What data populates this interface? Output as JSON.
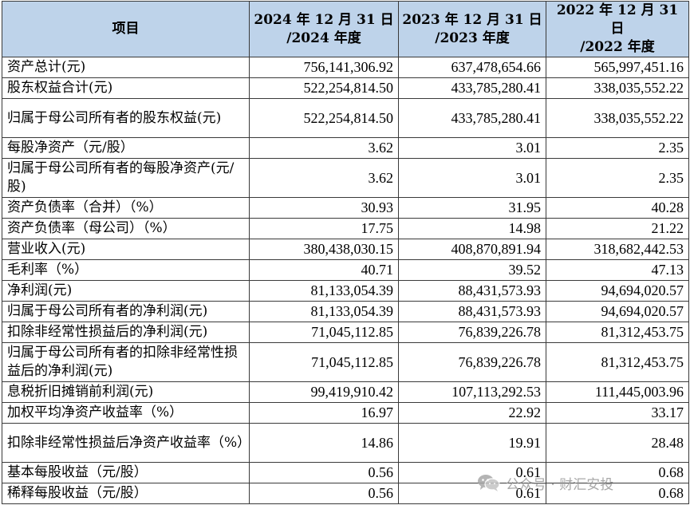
{
  "table": {
    "headers": [
      "项目",
      "2024 年 12 月 31 日\n/2024 年度",
      "2023 年 12 月 31 日\n/2023 年度",
      "2022 年 12 月 31 日\n/2022 年度"
    ],
    "rows": [
      {
        "label": "资产总计(元)",
        "values": [
          "756,141,306.92",
          "637,478,654.66",
          "565,997,451.16"
        ]
      },
      {
        "label": "股东权益合计(元)",
        "values": [
          "522,254,814.50",
          "433,785,280.41",
          "338,035,552.22"
        ]
      },
      {
        "label": "归属于母公司所有者的股东权益(元)",
        "values": [
          "522,254,814.50",
          "433,785,280.41",
          "338,035,552.22"
        ]
      },
      {
        "label": "每股净资产（元/股）",
        "values": [
          "3.62",
          "3.01",
          "2.35"
        ]
      },
      {
        "label": "归属于母公司所有者的每股净资产(元/股)",
        "values": [
          "3.62",
          "3.01",
          "2.35"
        ]
      },
      {
        "label": "资产负债率（合并）（%）",
        "values": [
          "30.93",
          "31.95",
          "40.28"
        ]
      },
      {
        "label": "资产负债率（母公司）（%）",
        "values": [
          "17.75",
          "14.98",
          "21.22"
        ]
      },
      {
        "label": "营业收入(元)",
        "values": [
          "380,438,030.15",
          "408,870,891.94",
          "318,682,442.53"
        ]
      },
      {
        "label": "毛利率（%）",
        "values": [
          "40.71",
          "39.52",
          "47.13"
        ]
      },
      {
        "label": "净利润(元)",
        "values": [
          "81,133,054.39",
          "88,431,573.93",
          "94,694,020.57"
        ]
      },
      {
        "label": "归属于母公司所有者的净利润(元)",
        "values": [
          "81,133,054.39",
          "88,431,573.93",
          "94,694,020.57"
        ]
      },
      {
        "label": "扣除非经常性损益后的净利润(元)",
        "values": [
          "71,045,112.85",
          "76,839,226.78",
          "81,312,453.75"
        ]
      },
      {
        "label": "归属于母公司所有者的扣除非经常性损益后的净利润(元)",
        "values": [
          "71,045,112.85",
          "76,839,226.78",
          "81,312,453.75"
        ]
      },
      {
        "label": "息税折旧摊销前利润(元)",
        "values": [
          "99,419,910.42",
          "107,113,292.53",
          "111,445,003.96"
        ]
      },
      {
        "label": "加权平均净资产收益率（%）",
        "values": [
          "16.97",
          "22.92",
          "33.17"
        ]
      },
      {
        "label": "扣除非经常性损益后净资产收益率（%）",
        "values": [
          "14.86",
          "19.91",
          "28.48"
        ]
      },
      {
        "label": "基本每股收益（元/股）",
        "values": [
          "0.56",
          "0.61",
          "0.68"
        ]
      },
      {
        "label": "稀释每股收益（元/股）",
        "values": [
          "0.56",
          "0.61",
          "0.68"
        ]
      }
    ]
  },
  "watermark": {
    "icon": "wechat-icon",
    "text": "公众号 · 财汇安投"
  },
  "colors": {
    "header_bg": "#bed3ea",
    "border": "#3a3a3a",
    "watermark": "#9a9a9a"
  }
}
